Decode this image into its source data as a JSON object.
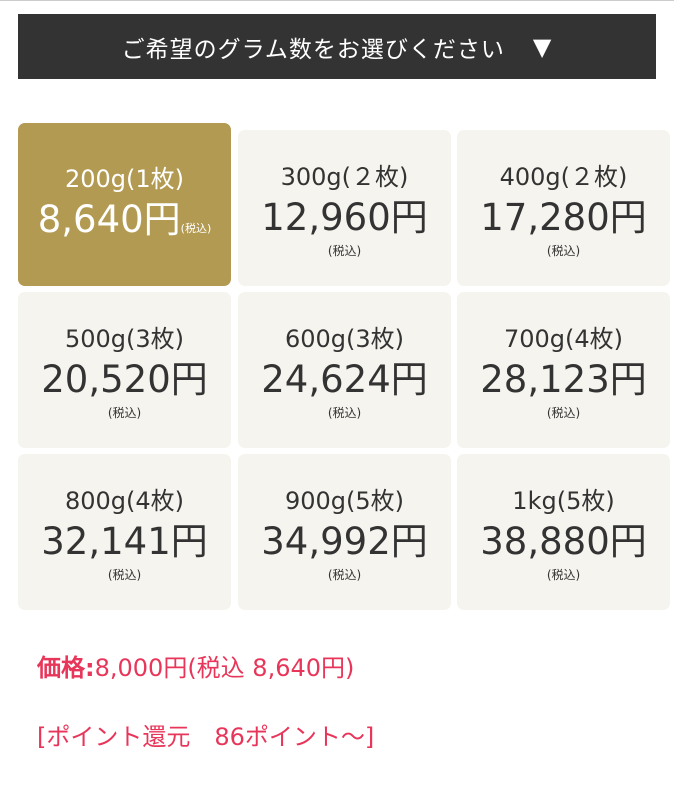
{
  "selector": {
    "label": "ご希望のグラム数をお選びください",
    "arrow": "▼"
  },
  "options": [
    {
      "weight": "200g(1枚)",
      "price": "8,640円",
      "tax": "(税込)",
      "selected": true
    },
    {
      "weight": "300g(２枚)",
      "price": "12,960円",
      "tax": "(税込)"
    },
    {
      "weight": "400g(２枚)",
      "price": "17,280円",
      "tax": "(税込)"
    },
    {
      "weight": "500g(3枚)",
      "price": "20,520円",
      "tax": "(税込)"
    },
    {
      "weight": "600g(3枚)",
      "price": "24,624円",
      "tax": "(税込)"
    },
    {
      "weight": "700g(4枚)",
      "price": "28,123円",
      "tax": "(税込)"
    },
    {
      "weight": "800g(4枚)",
      "price": "32,141円",
      "tax": "(税込)"
    },
    {
      "weight": "900g(5枚)",
      "price": "34,992円",
      "tax": "(税込)"
    },
    {
      "weight": "1kg(5枚)",
      "price": "38,880円",
      "tax": "(税込)"
    }
  ],
  "price": {
    "label": "価格:",
    "value": "8,000円(税込 8,640円)"
  },
  "points": "[ポイント還元　86ポイント～]",
  "colors": {
    "selected": "#b39a52",
    "card": "#f6f4ee",
    "accent": "#e8365a",
    "header": "#333333"
  }
}
